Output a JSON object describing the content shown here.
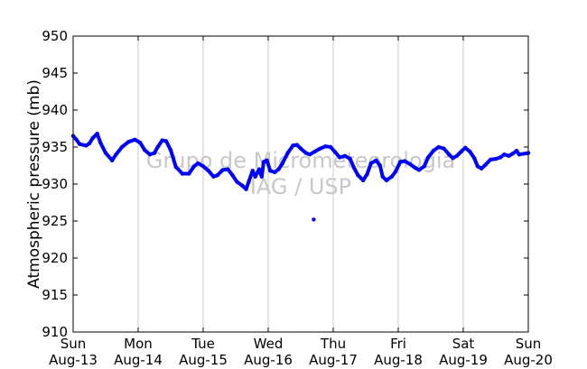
{
  "chart_data": {
    "type": "scatter",
    "title": "",
    "xlabel": "",
    "ylabel": "Atmospheric pressure (mb)",
    "ylim": [
      910,
      950
    ],
    "yticks": [
      910,
      915,
      920,
      925,
      930,
      935,
      940,
      945,
      950
    ],
    "xlim": [
      "2006-08-13",
      "2006-08-20"
    ],
    "xticks": [
      {
        "day": "Sun",
        "date": "Aug-13"
      },
      {
        "day": "Mon",
        "date": "Aug-14"
      },
      {
        "day": "Tue",
        "date": "Aug-15"
      },
      {
        "day": "Wed",
        "date": "Aug-16"
      },
      {
        "day": "Thu",
        "date": "Aug-17"
      },
      {
        "day": "Fri",
        "date": "Aug-18"
      },
      {
        "day": "Sat",
        "date": "Aug-19"
      },
      {
        "day": "Sun",
        "date": "Aug-20"
      }
    ],
    "grid": "vertical",
    "series_color": "#0000ff",
    "watermark": [
      "Grupo de Micrometeorologia",
      "IAG / USP"
    ],
    "series": [
      {
        "points": [
          [
            0.0,
            936.5
          ],
          [
            0.05,
            936.0
          ],
          [
            0.1,
            935.4
          ],
          [
            0.2,
            935.2
          ],
          [
            0.25,
            935.5
          ],
          [
            0.3,
            936.2
          ],
          [
            0.37,
            936.8
          ],
          [
            0.42,
            935.6
          ],
          [
            0.5,
            934.2
          ],
          [
            0.6,
            933.2
          ],
          [
            0.66,
            934.0
          ],
          [
            0.75,
            935.0
          ],
          [
            0.85,
            935.7
          ],
          [
            0.95,
            936.0
          ],
          [
            1.03,
            935.6
          ],
          [
            1.1,
            934.6
          ],
          [
            1.18,
            934.0
          ],
          [
            1.25,
            934.2
          ],
          [
            1.3,
            935.0
          ],
          [
            1.37,
            935.9
          ],
          [
            1.43,
            935.8
          ],
          [
            1.5,
            934.6
          ],
          [
            1.58,
            932.3
          ],
          [
            1.68,
            931.4
          ],
          [
            1.78,
            931.4
          ],
          [
            1.86,
            932.4
          ],
          [
            1.92,
            932.8
          ],
          [
            2.0,
            932.4
          ],
          [
            2.08,
            931.8
          ],
          [
            2.16,
            931.0
          ],
          [
            2.22,
            931.2
          ],
          [
            2.3,
            931.9
          ],
          [
            2.38,
            932.0
          ],
          [
            2.45,
            931.2
          ],
          [
            2.52,
            930.3
          ],
          [
            2.6,
            929.8
          ],
          [
            2.66,
            929.3
          ],
          [
            2.7,
            930.3
          ],
          [
            2.76,
            931.8
          ],
          [
            2.8,
            931.0
          ],
          [
            2.86,
            932.0
          ],
          [
            2.9,
            931.0
          ],
          [
            2.93,
            933.0
          ],
          [
            2.98,
            933.2
          ],
          [
            3.03,
            931.8
          ],
          [
            3.1,
            931.6
          ],
          [
            3.16,
            932.0
          ],
          [
            3.22,
            932.8
          ],
          [
            3.3,
            934.2
          ],
          [
            3.38,
            935.2
          ],
          [
            3.44,
            935.3
          ],
          [
            3.5,
            934.8
          ],
          [
            3.58,
            934.2
          ],
          [
            3.64,
            934.0
          ],
          [
            3.72,
            934.4
          ],
          [
            3.8,
            934.8
          ],
          [
            3.88,
            935.1
          ],
          [
            3.96,
            935.0
          ],
          [
            4.03,
            934.3
          ],
          [
            4.1,
            933.6
          ],
          [
            4.18,
            933.8
          ],
          [
            4.26,
            933.4
          ],
          [
            4.32,
            932.2
          ],
          [
            4.38,
            931.2
          ],
          [
            4.46,
            930.5
          ],
          [
            4.52,
            931.3
          ],
          [
            4.58,
            932.8
          ],
          [
            4.66,
            933.2
          ],
          [
            4.72,
            932.5
          ],
          [
            4.76,
            931.0
          ],
          [
            4.82,
            930.5
          ],
          [
            4.9,
            931.0
          ],
          [
            4.96,
            931.7
          ],
          [
            5.03,
            933.0
          ],
          [
            5.1,
            933.1
          ],
          [
            5.18,
            932.7
          ],
          [
            5.26,
            932.2
          ],
          [
            5.32,
            931.9
          ],
          [
            5.4,
            932.4
          ],
          [
            5.46,
            933.6
          ],
          [
            5.54,
            934.5
          ],
          [
            5.62,
            935.0
          ],
          [
            5.7,
            934.8
          ],
          [
            5.78,
            934.0
          ],
          [
            5.84,
            933.5
          ],
          [
            5.9,
            933.8
          ],
          [
            5.97,
            934.4
          ],
          [
            6.03,
            934.9
          ],
          [
            6.1,
            934.4
          ],
          [
            6.17,
            933.5
          ],
          [
            6.22,
            932.4
          ],
          [
            6.28,
            932.1
          ],
          [
            6.34,
            932.6
          ],
          [
            6.42,
            933.3
          ],
          [
            6.5,
            933.4
          ],
          [
            6.57,
            933.6
          ],
          [
            6.63,
            934.0
          ],
          [
            6.7,
            933.8
          ],
          [
            6.76,
            934.1
          ],
          [
            6.82,
            934.5
          ],
          [
            6.86,
            934.0
          ],
          [
            7.0,
            934.2
          ]
        ],
        "outliers": [
          [
            3.7,
            925.2
          ]
        ]
      }
    ]
  }
}
